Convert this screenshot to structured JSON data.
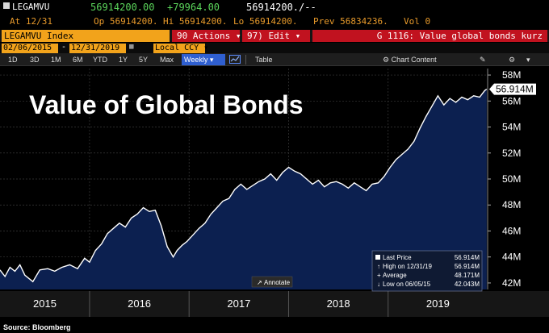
{
  "quote": {
    "ticker": "LEGAMVU",
    "last": "56914200.00",
    "change": "+79964.00",
    "bid_ask": "56914200./--",
    "at_label": "At 12/31",
    "open": "Op 56914200.",
    "high": "Hi 56914200.",
    "low": "Lo 56914200.",
    "prev": "Prev 56834236.",
    "vol": "Vol 0"
  },
  "toolbar": {
    "index_label": "LEGAMVU Index",
    "actions": "90 Actions",
    "edit": "97) Edit",
    "title": "G 1116: Value global bonds kurz"
  },
  "range": {
    "start": "02/06/2015",
    "end": "12/31/2019",
    "ccy": "Local CCY"
  },
  "periods": [
    "1D",
    "3D",
    "1M",
    "6M",
    "YTD",
    "1Y",
    "5Y",
    "Max"
  ],
  "frequency": "Weekly",
  "tools": {
    "table": "Table",
    "chart_content": "Chart Content"
  },
  "annotate": "Annotate",
  "source": "Source: Bloomberg",
  "colors": {
    "area": "#0c2050",
    "line": "#ffffff",
    "accent_orange": "#f2a31b",
    "red": "#c1121f"
  },
  "legend": {
    "last": {
      "label": "Last Price",
      "value": "56.914M"
    },
    "high": {
      "label": "High on 12/31/19",
      "value": "56.914M"
    },
    "avg": {
      "label": "Average",
      "value": "48.171M"
    },
    "low": {
      "label": "Low on 06/05/15",
      "value": "42.043M"
    }
  },
  "chart_data": {
    "type": "area",
    "title": "Value of Global Bonds",
    "xlabel": "",
    "ylabel": "",
    "ylim": [
      41.5,
      58.5
    ],
    "yticks": [
      "42M",
      "44M",
      "46M",
      "48M",
      "50M",
      "52M",
      "54M",
      "56M",
      "58M"
    ],
    "ytick_values": [
      42,
      44,
      46,
      48,
      50,
      52,
      54,
      56,
      58
    ],
    "xlim": [
      2015.1,
      2020.0
    ],
    "xticks": [
      "2015",
      "2016",
      "2017",
      "2018",
      "2019"
    ],
    "last_label": "56.914M",
    "grid": true,
    "series": [
      {
        "x": [
          2015.1,
          2015.15,
          2015.2,
          2015.25,
          2015.3,
          2015.35,
          2015.43,
          2015.5,
          2015.58,
          2015.65,
          2015.72,
          2015.8,
          2015.88,
          2015.95,
          2016.0,
          2016.06,
          2016.12,
          2016.18,
          2016.24,
          2016.3,
          2016.36,
          2016.42,
          2016.48,
          2016.54,
          2016.6,
          2016.66,
          2016.72,
          2016.78,
          2016.84,
          2016.88,
          2016.93,
          2016.98,
          2017.04,
          2017.1,
          2017.16,
          2017.22,
          2017.28,
          2017.34,
          2017.4,
          2017.46,
          2017.52,
          2017.58,
          2017.64,
          2017.7,
          2017.76,
          2017.82,
          2017.88,
          2017.94,
          2018.0,
          2018.06,
          2018.12,
          2018.18,
          2018.24,
          2018.3,
          2018.36,
          2018.42,
          2018.48,
          2018.54,
          2018.6,
          2018.66,
          2018.72,
          2018.78,
          2018.84,
          2018.9,
          2018.96,
          2019.02,
          2019.08,
          2019.14,
          2019.2,
          2019.26,
          2019.32,
          2019.38,
          2019.44,
          2019.5,
          2019.56,
          2019.62,
          2019.68,
          2019.74,
          2019.8,
          2019.86,
          2019.92,
          2019.97,
          2019.99
        ],
        "values": [
          43.0,
          42.5,
          43.2,
          42.9,
          43.4,
          42.6,
          42.1,
          43.0,
          43.1,
          42.9,
          43.2,
          43.4,
          43.1,
          43.9,
          43.6,
          44.5,
          45.0,
          45.8,
          46.2,
          46.6,
          46.3,
          47.0,
          47.3,
          47.8,
          47.5,
          47.6,
          46.4,
          44.8,
          44.0,
          44.5,
          44.9,
          45.2,
          45.7,
          46.2,
          46.6,
          47.3,
          47.8,
          48.3,
          48.5,
          49.2,
          49.6,
          49.2,
          49.5,
          49.8,
          50.0,
          50.4,
          49.9,
          50.5,
          50.9,
          50.6,
          50.4,
          50.0,
          49.6,
          49.9,
          49.4,
          49.7,
          49.8,
          49.6,
          49.3,
          49.7,
          49.4,
          49.1,
          49.6,
          49.7,
          50.2,
          50.9,
          51.5,
          51.9,
          52.3,
          52.9,
          53.9,
          54.8,
          55.6,
          56.4,
          55.7,
          56.2,
          55.9,
          56.3,
          56.1,
          56.4,
          56.3,
          56.8,
          56.914
        ]
      }
    ]
  }
}
